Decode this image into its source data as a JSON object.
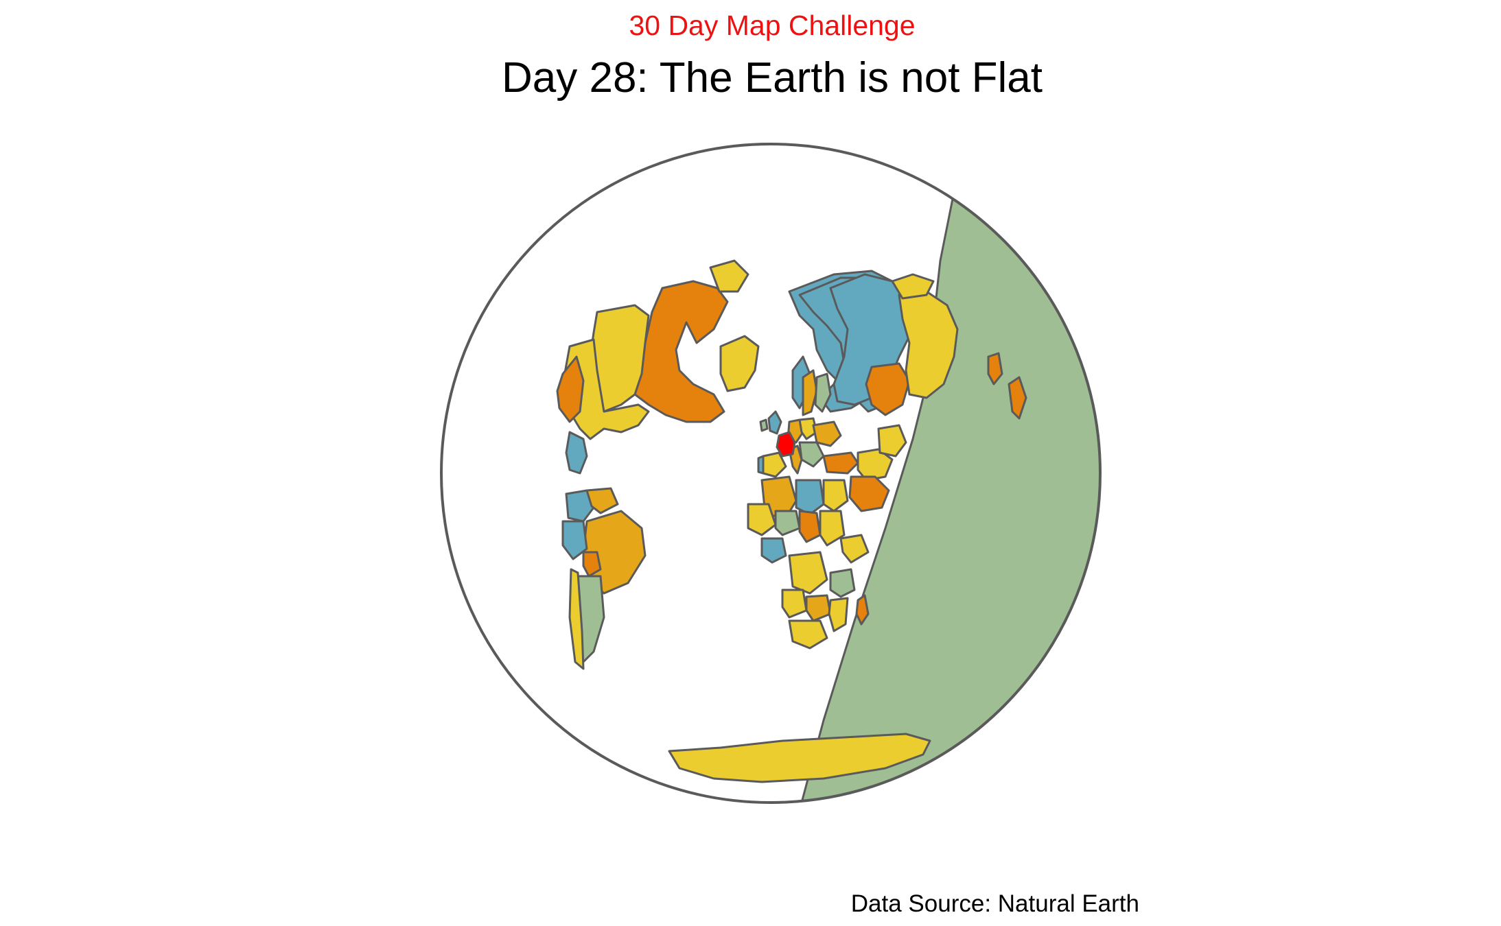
{
  "header": {
    "subtitle": "30 Day Map Challenge",
    "title": "Day 28: The Earth is not Flat"
  },
  "footer": {
    "caption": "Data Source: Natural Earth"
  },
  "map": {
    "projection": "orthographic",
    "center_country": "France",
    "colors": {
      "ocean": "#ffffff",
      "border": "#5a5a5a",
      "night_side": "#9fbe94",
      "highlight": "#ff0000",
      "palette": [
        "#eccd30",
        "#e6a619",
        "#e5810d",
        "#62a9c0",
        "#9fbe94"
      ]
    }
  }
}
